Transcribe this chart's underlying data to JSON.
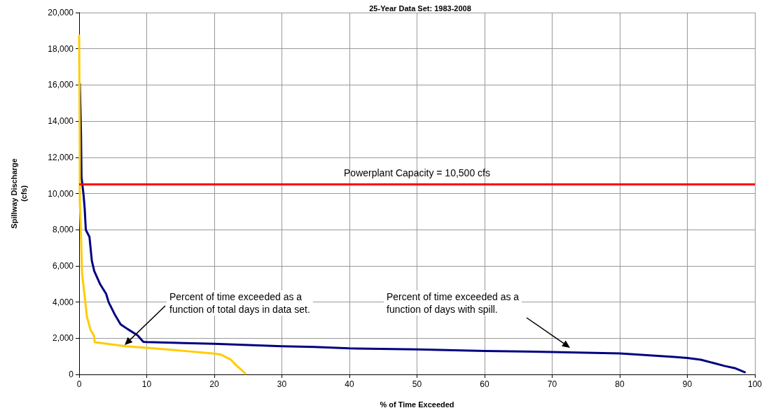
{
  "chart_data": {
    "type": "line",
    "title": "25-Year Data Set: 1983-2008",
    "xlabel": "% of Time Exceeded",
    "ylabel": "Spillway Discharge\n(cfs)",
    "series": [
      {
        "color": "#000080",
        "x": [
          0.1,
          0.28,
          0.35,
          0.64,
          0.82,
          0.99,
          1.53,
          1.88,
          2.24,
          3.12,
          4.0,
          4.37,
          5.25,
          6.14,
          7.2,
          8.63,
          9.5,
          10,
          20,
          30,
          34.8,
          40,
          50,
          60,
          70,
          80,
          88,
          90,
          92,
          94,
          95.5,
          97,
          98.5
        ],
        "values": [
          16060,
          13280,
          10900,
          9980,
          9180,
          7990,
          7600,
          6280,
          5710,
          4980,
          4450,
          3990,
          3330,
          2770,
          2500,
          2170,
          1800,
          1790,
          1690,
          1560,
          1520,
          1440,
          1380,
          1300,
          1240,
          1160,
          970,
          910,
          810,
          620,
          470,
          350,
          120
        ]
      },
      {
        "color": "#ffcc00",
        "x": [
          0,
          0.1,
          0.1,
          0.26,
          0.43,
          0.8,
          1.15,
          1.68,
          2.2,
          2.32,
          6.9,
          10,
          14.9,
          20,
          21,
          22.4,
          23.4,
          24,
          24.6
        ],
        "values": [
          18730,
          12590,
          9560,
          7960,
          5580,
          4390,
          3200,
          2470,
          2140,
          1780,
          1560,
          1470,
          1320,
          1150,
          1090,
          830,
          450,
          260,
          40
        ]
      }
    ],
    "xlim": [
      0,
      100
    ],
    "xticks": [
      0,
      10,
      20,
      30,
      40,
      50,
      60,
      70,
      80,
      90,
      100
    ],
    "ylim": [
      0,
      20000
    ],
    "yticks": [
      0,
      {
        "value": 2000,
        "label": "2,000"
      },
      {
        "value": 4000,
        "label": "4,000"
      },
      {
        "value": 6000,
        "label": "6,000"
      },
      {
        "value": 8000,
        "label": "8,000"
      },
      {
        "value": 10000,
        "label": "10,000"
      },
      {
        "value": 12000,
        "label": "12,000"
      },
      {
        "value": 14000,
        "label": "14,000"
      },
      {
        "value": 16000,
        "label": "16,000"
      },
      {
        "value": 18000,
        "label": "18,000"
      },
      {
        "value": 20000,
        "label": "20,000"
      }
    ],
    "ref_lines": [
      {
        "axis": "y",
        "value": 10500,
        "label": "Powerplant Capacity = 10,500 cfs",
        "color": "#ff0000"
      }
    ],
    "annotations": [
      {
        "text": "Percent of time exceeded as a\nfunction of total days in data set."
      },
      {
        "text": "Percent of time exceeded as a\nfunction of days with spill."
      }
    ],
    "grid": true,
    "marker": "none",
    "line_style": "solid"
  }
}
